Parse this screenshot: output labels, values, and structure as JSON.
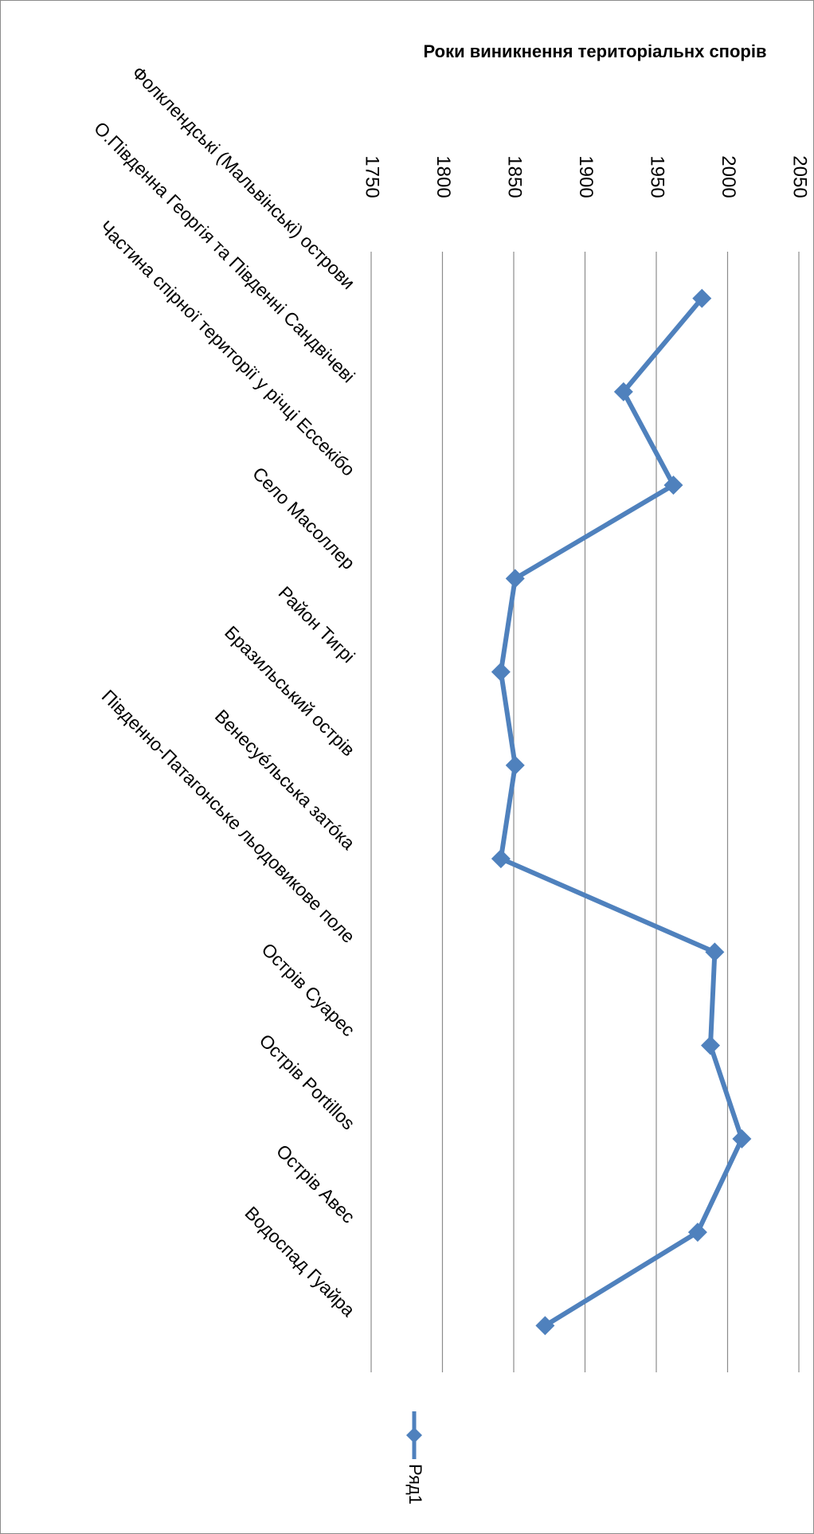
{
  "chart_data": {
    "type": "line",
    "title": "Роки виникнення територіальнх спорів",
    "categories": [
      "Фолклендські (Мальвінські) острови",
      "О.Південна Георгія та Південні Сандвічеві",
      "Частина спірної території у річці Ессекібо",
      "Село Масоллер",
      "Район Тигрі",
      "Бразильський острів",
      "Венесуе́льська зато́ка",
      "Південно-Патагонське льодовикове поле",
      "Острів Суарес",
      "Острів Portillos",
      "Острів Авес",
      "Водоспад Гуайра"
    ],
    "series": [
      {
        "name": "Ряд1",
        "color": "#4F81BD",
        "values": [
          1982,
          1927,
          1962,
          1851,
          1841,
          1851,
          1841,
          1991,
          1988,
          2010,
          1979,
          1872
        ]
      }
    ],
    "ylim": [
      1750,
      2050
    ],
    "yticks": [
      "1750",
      "1800",
      "1850",
      "1900",
      "1950",
      "2000",
      "2050"
    ],
    "grid": true,
    "legend_position": "bottom",
    "orientation": "rotated-90-clockwise"
  }
}
